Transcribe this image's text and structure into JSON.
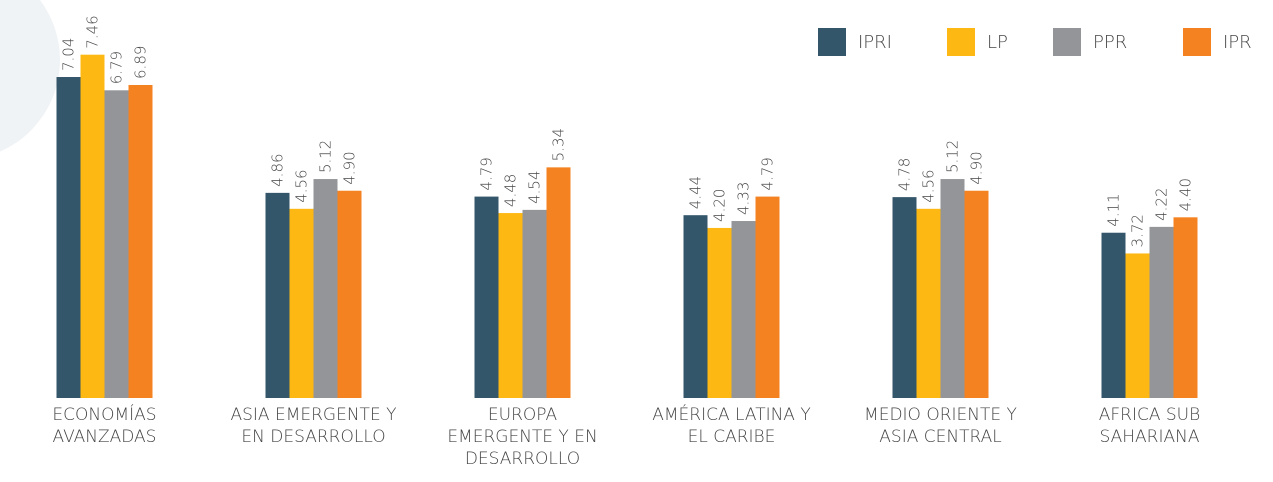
{
  "chart_data": {
    "type": "bar",
    "categories": [
      "ECONOMÍAS AVANZADAS",
      "ASIA EMERGENTE Y EN DESARROLLO",
      "EUROPA EMERGENTE Y EN DESARROLLO",
      "AMÉRICA LATINA Y EL CARIBE",
      "MEDIO ORIENTE Y ASIA CENTRAL",
      "AFRICA SUB SAHARIANA"
    ],
    "series": [
      {
        "name": "IPRI",
        "color": "#34566a",
        "values": [
          7.04,
          4.86,
          4.79,
          4.44,
          4.78,
          4.11
        ],
        "value_labels": [
          "7.04",
          "4.86",
          "4.79",
          "4.44",
          "4.78",
          "4.11"
        ]
      },
      {
        "name": "LP",
        "color": "#fdb813",
        "values": [
          7.46,
          4.56,
          4.48,
          4.2,
          4.56,
          3.72
        ],
        "value_labels": [
          "7.46",
          "4.56",
          "4.48",
          "4.20",
          "4.56",
          "3.72"
        ]
      },
      {
        "name": "PPR",
        "color": "#939598",
        "values": [
          6.79,
          5.12,
          4.54,
          4.33,
          5.12,
          4.22
        ],
        "value_labels": [
          "6.79",
          "5.12",
          "4.54",
          "4.33",
          "5.12",
          "4.22"
        ]
      },
      {
        "name": "IPR",
        "color": "#f58220",
        "values": [
          6.89,
          4.9,
          5.34,
          4.79,
          4.9,
          4.4
        ],
        "value_labels": [
          "6.89",
          "4.90",
          "5.34",
          "4.79",
          "4.90",
          "4.40"
        ]
      }
    ],
    "ylim": [
      1,
      8
    ],
    "legend": "top-right"
  }
}
